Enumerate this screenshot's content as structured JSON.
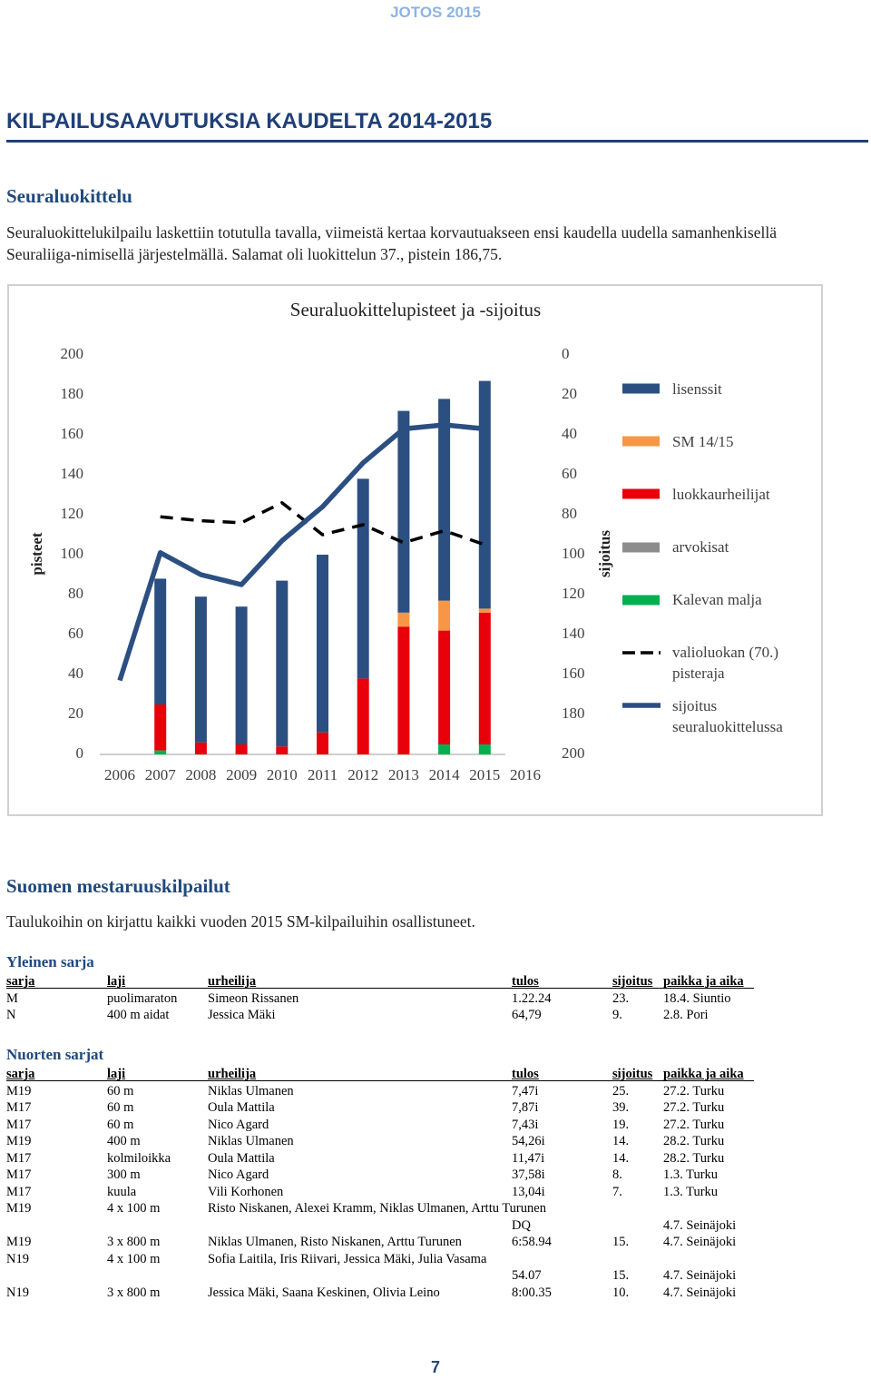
{
  "header": "JOTOS 2015",
  "title": "KILPAILUSAAVUTUKSIA KAUDELTA 2014-2015",
  "section1": {
    "heading": "Seuraluokittelu",
    "text": "Seuraluokittelukilpailu laskettiin totutulla tavalla, viimeistä kertaa korvautuakseen ensi kaudella uudella samanhenkisellä Seuraliiga-nimisellä järjestelmällä. Salamat oli luokittelun 37., pistein 186,75."
  },
  "chart_data": {
    "type": "bar",
    "title": "Seuraluokittelupisteet ja -sijoitus",
    "ylabel": "pisteet",
    "y2label": "sijoitus",
    "categories": [
      "2006",
      "2007",
      "2008",
      "2009",
      "2010",
      "2011",
      "2012",
      "2013",
      "2014",
      "2015",
      "2016"
    ],
    "ylim": [
      0,
      200
    ],
    "yticks": [
      0,
      20,
      40,
      60,
      80,
      100,
      120,
      140,
      160,
      180,
      200
    ],
    "y2lim": [
      200,
      0
    ],
    "y2ticks": [
      0,
      20,
      40,
      60,
      80,
      100,
      120,
      140,
      160,
      180,
      200
    ],
    "grid": false,
    "legend": "right",
    "series": [
      {
        "name": "lisenssit",
        "type": "bar",
        "color": "#2b4f81",
        "values": [
          null,
          63,
          73,
          69,
          83,
          89,
          100,
          101,
          101,
          114,
          null
        ]
      },
      {
        "name": "SM 14/15",
        "type": "bar",
        "color": "#f79646",
        "values": [
          null,
          0,
          0,
          0,
          0,
          0,
          0,
          7,
          15,
          2,
          null
        ]
      },
      {
        "name": "luokkaurheilijat",
        "type": "bar",
        "color": "#e8000b",
        "values": [
          null,
          23,
          6,
          5,
          4,
          11,
          38,
          64,
          57,
          66,
          null
        ]
      },
      {
        "name": "arvokisat",
        "type": "bar",
        "color": "#8c8c8c",
        "values": [
          null,
          0,
          0,
          0,
          0,
          0,
          0,
          0,
          0,
          0,
          null
        ]
      },
      {
        "name": "Kalevan malja",
        "type": "bar",
        "color": "#00b050",
        "values": [
          null,
          2,
          0,
          0,
          0,
          0,
          0,
          0,
          5,
          5,
          null
        ]
      },
      {
        "name": "valioluokan (70.) pisteraja",
        "type": "line",
        "dashed": true,
        "color": "#000000",
        "values": [
          null,
          119,
          117,
          116,
          126,
          110,
          115,
          106,
          112,
          105,
          null
        ]
      },
      {
        "name": "sijoitus seuraluokittelussa",
        "type": "line",
        "axis": "y2",
        "color": "#2b4f81",
        "values": [
          163,
          99,
          110,
          115,
          93,
          76,
          54,
          37,
          35,
          37,
          null
        ]
      }
    ]
  },
  "section2": {
    "heading": "Suomen mestaruuskilpailut",
    "text": "Taulukoihin on kirjattu kaikki vuoden 2015 SM-kilpailuihin osallistuneet."
  },
  "tables": [
    {
      "title": "Yleinen sarja",
      "columns": [
        "sarja",
        "laji",
        "urheilija",
        "tulos",
        "sijoitus",
        "paikka ja aika"
      ],
      "rows": [
        [
          "M",
          "puolimaraton",
          "Simeon Rissanen",
          "1.22.24",
          "23.",
          "18.4. Siuntio"
        ],
        [
          "N",
          "400 m aidat",
          "Jessica Mäki",
          "64,79",
          "9.",
          "2.8. Pori"
        ]
      ]
    },
    {
      "title": "Nuorten sarjat",
      "columns": [
        "sarja",
        "laji",
        "urheilija",
        "tulos",
        "sijoitus",
        "paikka ja aika"
      ],
      "rows": [
        [
          "M19",
          "60 m",
          "Niklas Ulmanen",
          "7,47i",
          "25.",
          "27.2. Turku"
        ],
        [
          "M17",
          "60 m",
          "Oula Mattila",
          "7,87i",
          "39.",
          "27.2. Turku"
        ],
        [
          "M17",
          "60 m",
          "Nico Agard",
          "7,43i",
          "19.",
          "27.2. Turku"
        ],
        [
          "M19",
          "400 m",
          "Niklas Ulmanen",
          "54,26i",
          "14.",
          "28.2. Turku"
        ],
        [
          "M17",
          "kolmiloikka",
          "Oula Mattila",
          "11,47i",
          "14.",
          "28.2. Turku"
        ],
        [
          "M17",
          "300 m",
          "Nico Agard",
          "37,58i",
          "8.",
          "1.3. Turku"
        ],
        [
          "M17",
          "kuula",
          "Vili Korhonen",
          "13,04i",
          "7.",
          "1.3. Turku"
        ],
        [
          "M19",
          "4 x 100 m",
          "Risto Niskanen, Alexei Kramm, Niklas Ulmanen, Arttu Turunen",
          "DQ",
          null,
          "4.7. Seinäjoki"
        ],
        [
          "M19",
          "3 x 800 m",
          "Niklas Ulmanen, Risto Niskanen, Arttu Turunen",
          "6:58.94",
          "15.",
          "4.7. Seinäjoki"
        ],
        [
          "N19",
          "4 x 100 m",
          "Sofia Laitila, Iris Riivari, Jessica Mäki, Julia Vasama",
          "54.07",
          "15.",
          "4.7. Seinäjoki"
        ],
        [
          "N19",
          "3 x 800 m",
          "Jessica Mäki, Saana Keskinen, Olivia Leino",
          "8:00.35",
          "10.",
          "4.7. Seinäjoki"
        ]
      ]
    }
  ],
  "page_number": "7"
}
